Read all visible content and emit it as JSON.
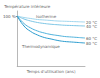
{
  "chart_data": {
    "type": "line",
    "y_label": "Température intérieure",
    "x_label": "Temps d'utilisation (ans)",
    "annotations": [
      "Isotherme",
      "Thermodynamique"
    ],
    "x": [
      0,
      1,
      2,
      3,
      4,
      5,
      6,
      7,
      8,
      9,
      10
    ],
    "series": [
      {
        "name": "20 °C",
        "color": "#9fd6ee",
        "values": [
          100,
          97,
          95,
          93,
          92,
          91,
          90,
          89.5,
          89,
          88.5,
          88
        ]
      },
      {
        "name": "40 °C",
        "color": "#7cc6e6",
        "values": [
          100,
          94,
          90,
          87,
          85,
          83.5,
          82.5,
          81.5,
          81,
          80.5,
          80
        ]
      },
      {
        "name": "60 °C",
        "color": "#4fb2dc",
        "values": [
          100,
          85,
          76,
          70,
          66,
          63,
          61,
          59,
          58,
          57,
          56
        ]
      },
      {
        "name": "80 °C",
        "color": "#2a9ccf",
        "values": [
          100,
          80,
          69,
          62,
          57,
          54,
          51,
          49,
          48,
          47,
          46
        ]
      }
    ],
    "xlim": [
      0,
      10
    ],
    "ylim": [
      0,
      110
    ],
    "yticks": [
      {
        "value": 100,
        "label": "100 %"
      }
    ],
    "grid": false,
    "tick_labels": "y",
    "marker": "none",
    "line_style": "solid"
  }
}
